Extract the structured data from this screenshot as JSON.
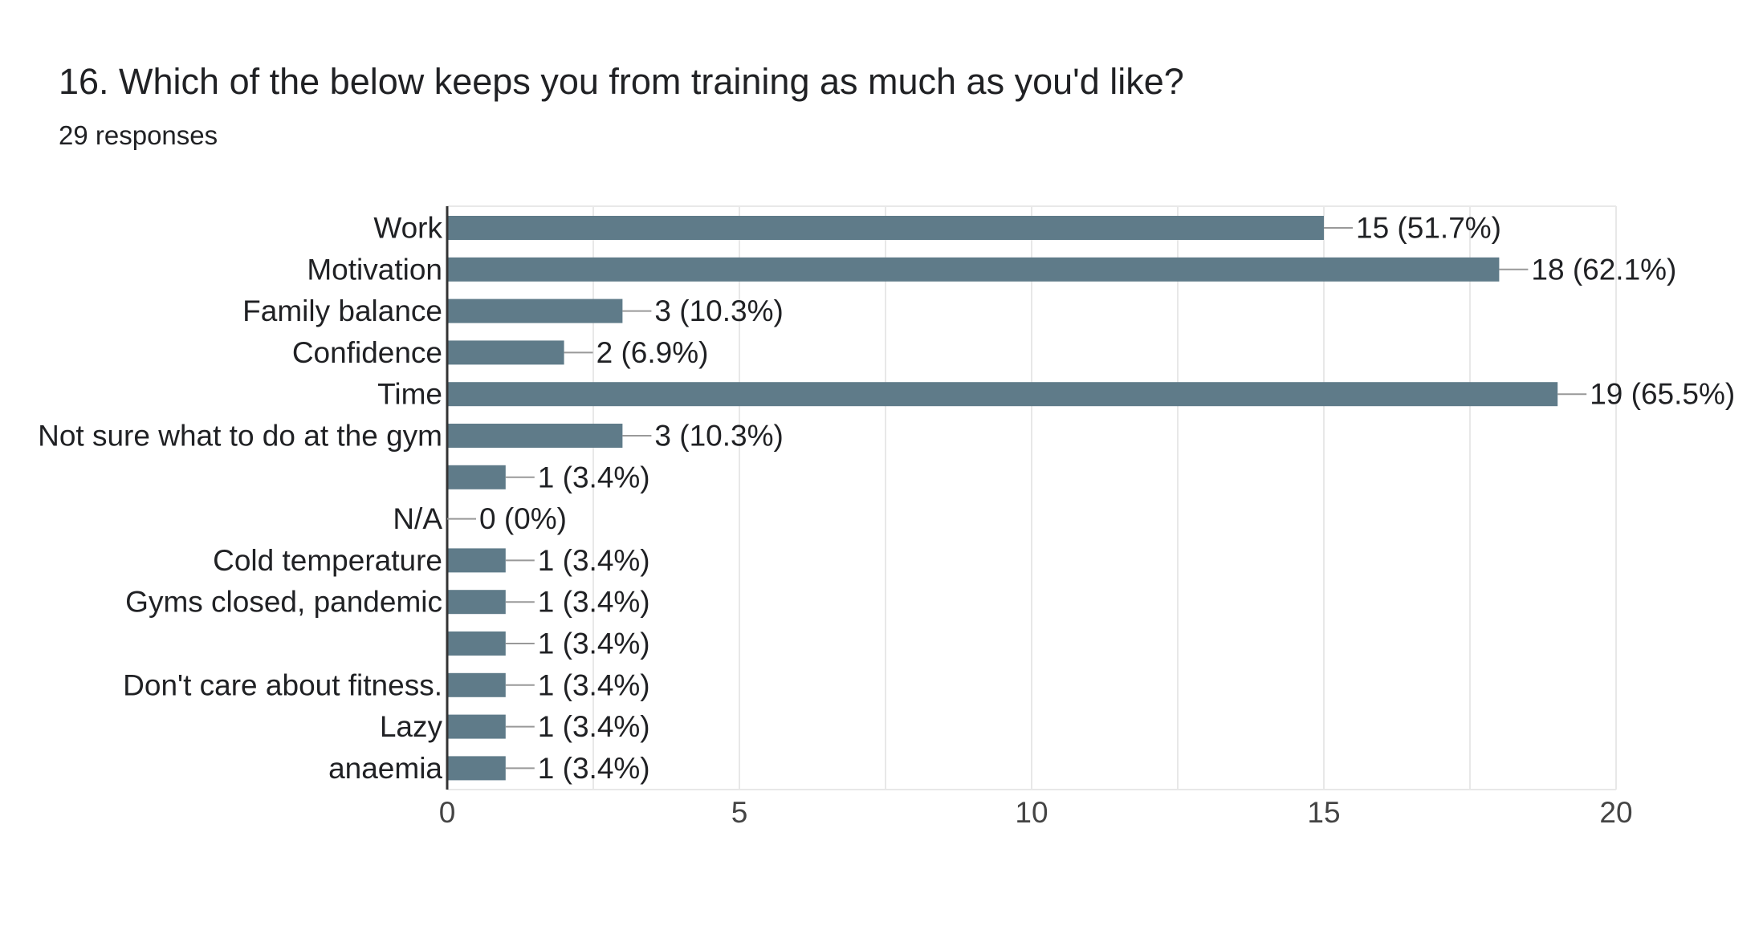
{
  "form": {
    "question": "16. Which of the below keeps you from training as much as you'd like?",
    "responses": "29 responses"
  },
  "chart_data": {
    "type": "bar",
    "orientation": "horizontal",
    "title": "16. Which of the below keeps you from training as much as you'd like?",
    "subtitle": "29 responses",
    "categories": [
      "Work",
      "Motivation",
      "Family balance",
      "Confidence",
      "Time",
      "Not sure what to do at the gym",
      "",
      "N/A",
      "Cold temperature",
      "Gyms closed, pandemic",
      "",
      "Don't care about fitness.",
      "Lazy",
      "anaemia"
    ],
    "values": [
      15,
      18,
      3,
      2,
      19,
      3,
      1,
      0,
      1,
      1,
      1,
      1,
      1,
      1
    ],
    "data_labels": [
      "15 (51.7%)",
      "18 (62.1%)",
      "3 (10.3%)",
      "2 (6.9%)",
      "19 (65.5%)",
      "3 (10.3%)",
      "1 (3.4%)",
      "0 (0%)",
      "1 (3.4%)",
      "1 (3.4%)",
      "1 (3.4%)",
      "1 (3.4%)",
      "1 (3.4%)",
      "1 (3.4%)"
    ],
    "xlim": [
      0,
      20
    ],
    "xticks": [
      0,
      5,
      10,
      15,
      20
    ],
    "xlabel": "",
    "ylabel": "",
    "grid": true,
    "bar_color": "#5f7b89",
    "grid_color": "#e8e8e8",
    "axis_color": "#333333",
    "leader_line_color": "#999999",
    "text_color": "#202124",
    "tick_label_color": "#444444"
  }
}
